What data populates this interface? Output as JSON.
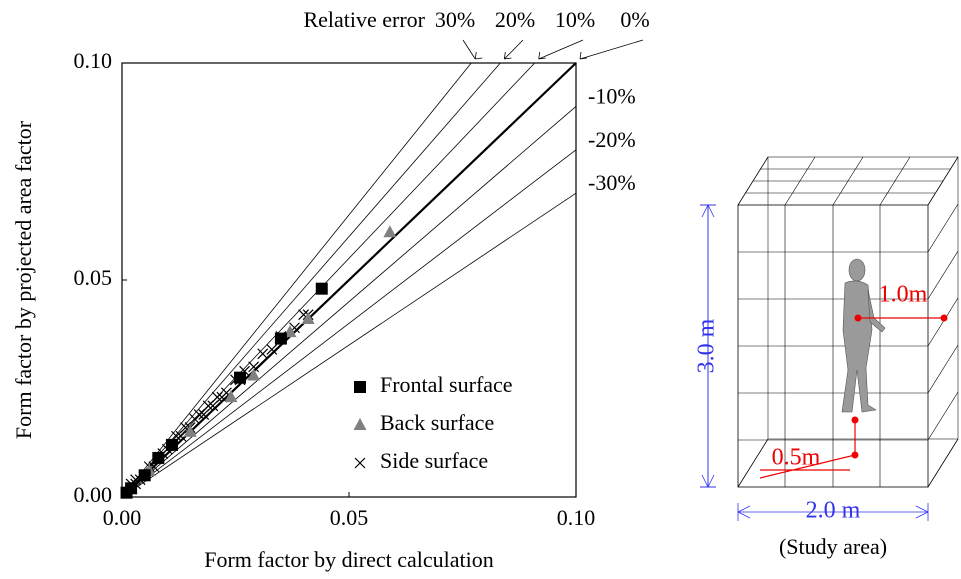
{
  "chart_data": {
    "type": "scatter",
    "xlabel": "Form factor by direct calculation",
    "ylabel": "Form factor by projected area factor",
    "xlim": [
      0,
      0.1
    ],
    "ylim": [
      0,
      0.1
    ],
    "xticks": [
      {
        "value": 0,
        "label": "0.00"
      },
      0.05,
      {
        "value": 0.1,
        "label": "0.10"
      }
    ],
    "yticks": [
      {
        "value": 0,
        "label": "0.00"
      },
      0.05,
      {
        "value": 0.1,
        "label": "0.10"
      }
    ],
    "reference_title": "Relative error",
    "reference_lines": [
      {
        "value": 30,
        "label": "30%"
      },
      {
        "value": 20,
        "label": "20%"
      },
      {
        "value": 10,
        "label": "10%"
      },
      {
        "value": 0,
        "label": "0%"
      },
      {
        "value": -10,
        "label": "-10%"
      },
      {
        "value": -20,
        "label": "-20%"
      },
      {
        "value": -30,
        "label": "-30%"
      }
    ],
    "series": [
      {
        "name": "Frontal surface",
        "color": "#000000",
        "marker": "square",
        "x": [
          0.044,
          0.035,
          0.026,
          0.011,
          0.008,
          0.005,
          0.002,
          0.001
        ],
        "values": [
          0.048,
          0.0365,
          0.0275,
          0.012,
          0.009,
          0.005,
          0.002,
          0.001
        ]
      },
      {
        "name": "Back surface",
        "color": "#808080",
        "marker": "triangle",
        "x": [
          0.059,
          0.041,
          0.037,
          0.029,
          0.024,
          0.015,
          0.006,
          0.002
        ],
        "values": [
          0.061,
          0.041,
          0.038,
          0.028,
          0.023,
          0.015,
          0.006,
          0.002
        ]
      },
      {
        "name": "Side surface",
        "color": "#000000",
        "marker": "cross",
        "x": [
          0.001,
          0.002,
          0.002,
          0.003,
          0.003,
          0.004,
          0.005,
          0.006,
          0.007,
          0.008,
          0.009,
          0.01,
          0.011,
          0.012,
          0.013,
          0.014,
          0.015,
          0.016,
          0.017,
          0.018,
          0.019,
          0.02,
          0.021,
          0.022,
          0.023,
          0.025,
          0.026,
          0.027,
          0.029,
          0.031,
          0.033,
          0.035,
          0.038,
          0.04,
          0.041
        ],
        "values": [
          0.001,
          0.002,
          0.003,
          0.003,
          0.004,
          0.004,
          0.005,
          0.007,
          0.007,
          0.009,
          0.01,
          0.011,
          0.012,
          0.014,
          0.014,
          0.016,
          0.016,
          0.018,
          0.019,
          0.019,
          0.021,
          0.021,
          0.023,
          0.023,
          0.024,
          0.027,
          0.027,
          0.029,
          0.03,
          0.033,
          0.034,
          0.037,
          0.039,
          0.042,
          0.042
        ]
      }
    ]
  },
  "diagram": {
    "height_label": "3.0 m",
    "width_label": "2.0 m",
    "caption": "(Study area)",
    "distance_label": "1.0m",
    "elevation_label": "0.5m"
  }
}
